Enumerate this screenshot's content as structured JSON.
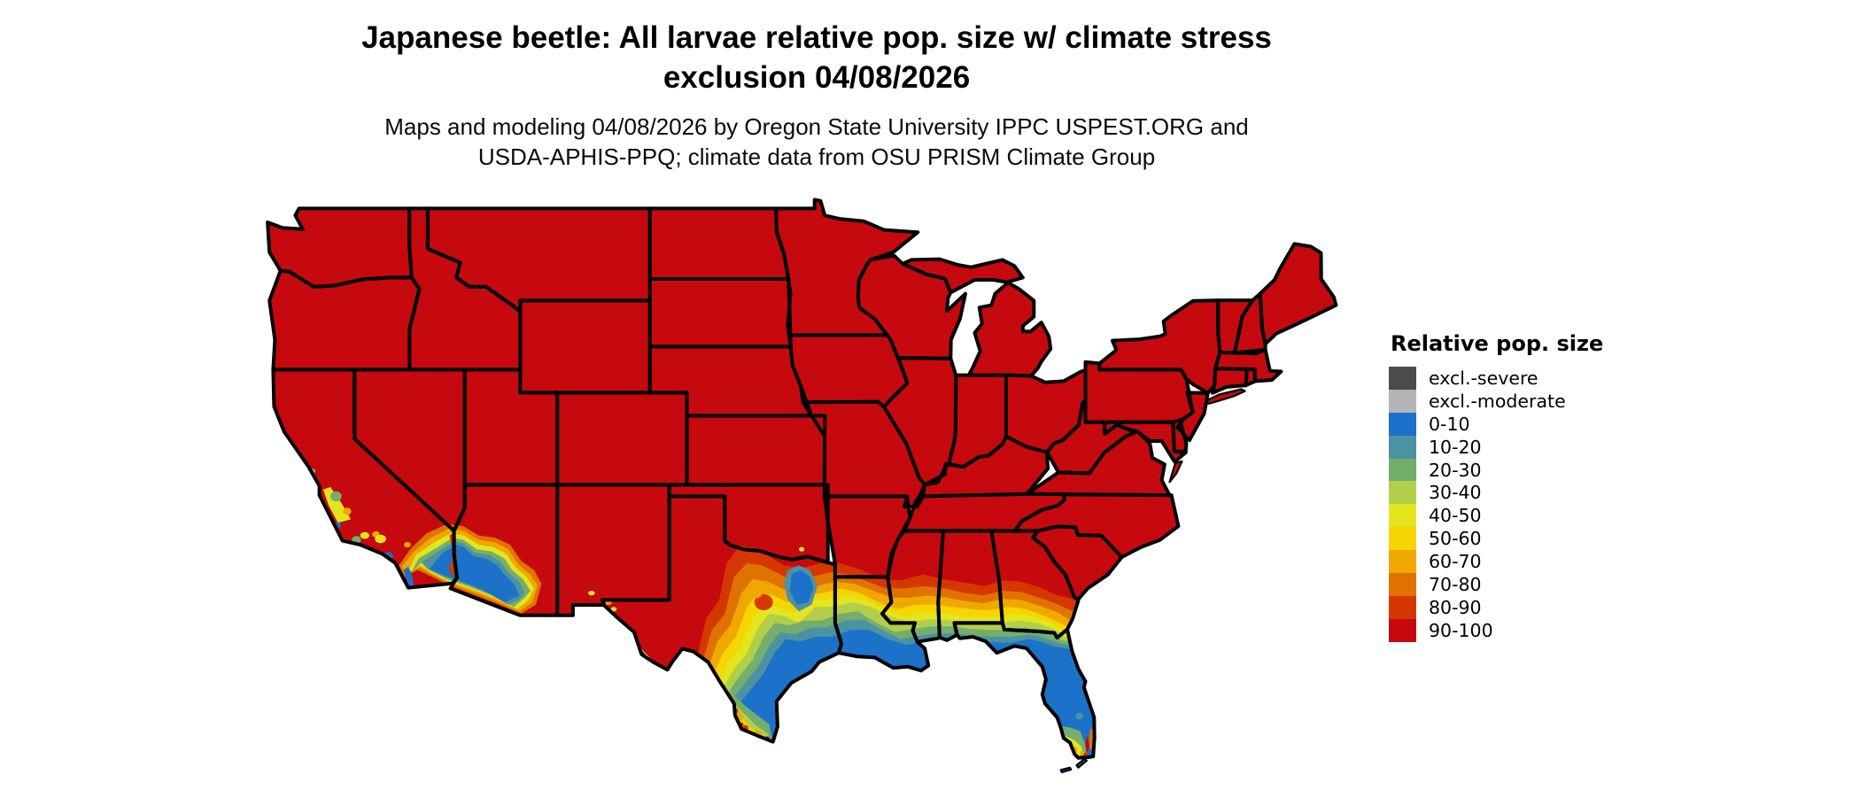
{
  "figure": {
    "title_line1": "Japanese beetle: All larvae relative pop. size w/ climate stress",
    "title_line2": "exclusion 04/08/2026",
    "subtitle_line1": "Maps and modeling 04/08/2026 by Oregon State University IPPC USPEST.ORG and",
    "subtitle_line2": "USDA-APHIS-PPQ; climate data from OSU PRISM Climate Group"
  },
  "legend": {
    "title": "Relative pop. size",
    "entries": [
      {
        "label": "excl.-severe",
        "color": "#4B4B4D"
      },
      {
        "label": "excl.-moderate",
        "color": "#B4B4B6"
      },
      {
        "label": "0-10",
        "color": "#1B72C8"
      },
      {
        "label": "10-20",
        "color": "#4D92A2"
      },
      {
        "label": "20-30",
        "color": "#73AE6C"
      },
      {
        "label": "30-40",
        "color": "#B2CF4A"
      },
      {
        "label": "40-50",
        "color": "#E3E51E"
      },
      {
        "label": "50-60",
        "color": "#F6D500"
      },
      {
        "label": "60-70",
        "color": "#EEA800"
      },
      {
        "label": "70-80",
        "color": "#E07200"
      },
      {
        "label": "80-90",
        "color": "#D63600"
      },
      {
        "label": "90-100",
        "color": "#C5090E"
      }
    ]
  }
}
